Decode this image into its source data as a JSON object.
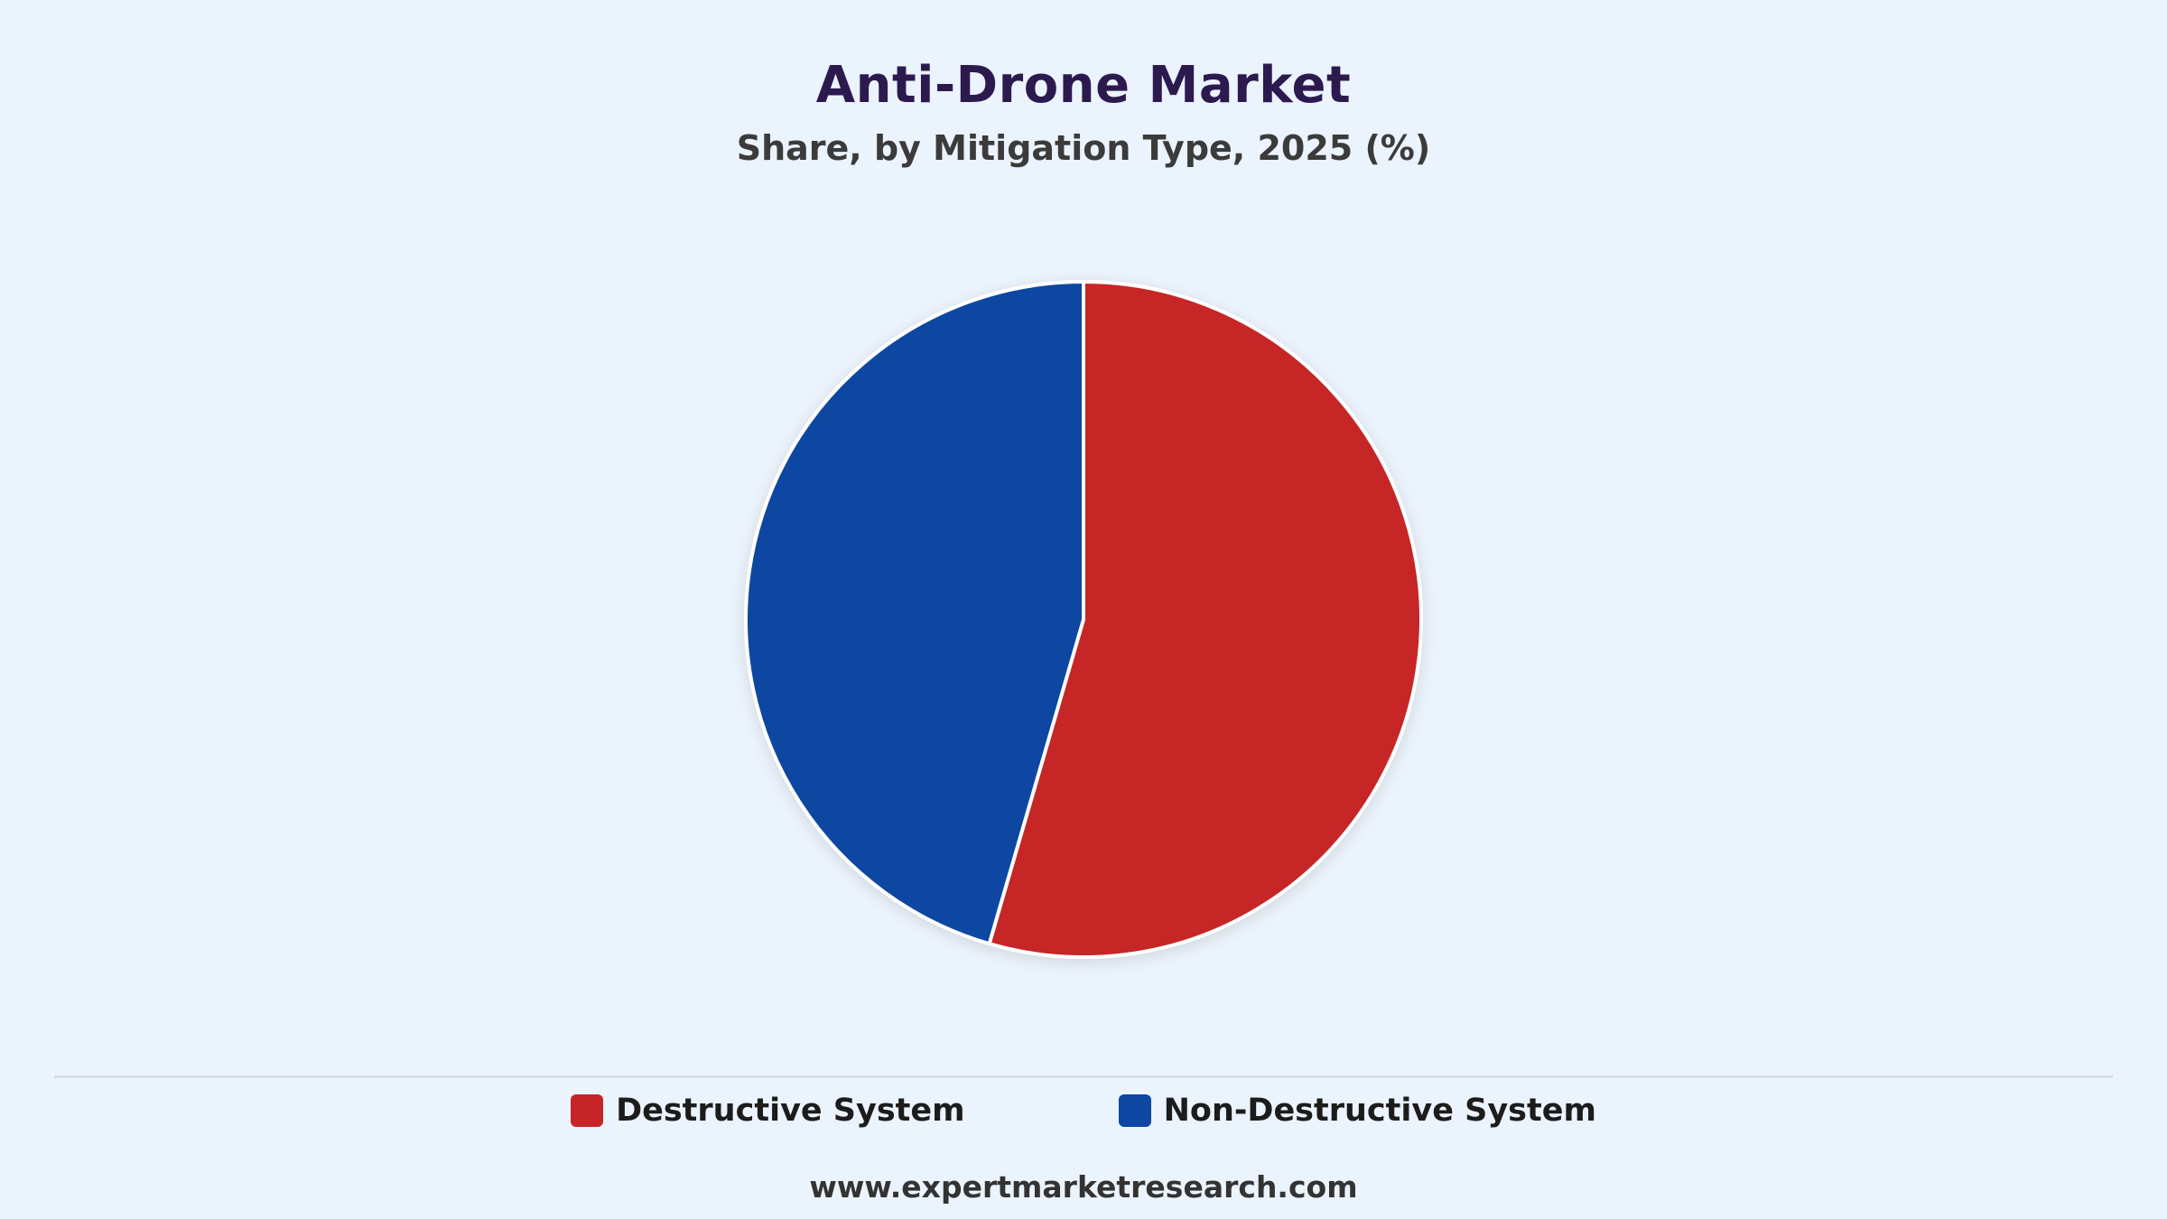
{
  "chart_data": {
    "type": "pie",
    "title": "Anti-Drone Market",
    "subtitle": "Share, by Mitigation Type, 2025 (%)",
    "series": [
      {
        "name": "Destructive System",
        "value": 54.5,
        "color": "#c62527"
      },
      {
        "name": "Non-Destructive System",
        "value": 45.5,
        "color": "#0d47a1"
      }
    ],
    "legend_position": "bottom"
  },
  "footer": {
    "source": "www.expertmarketresearch.com"
  }
}
